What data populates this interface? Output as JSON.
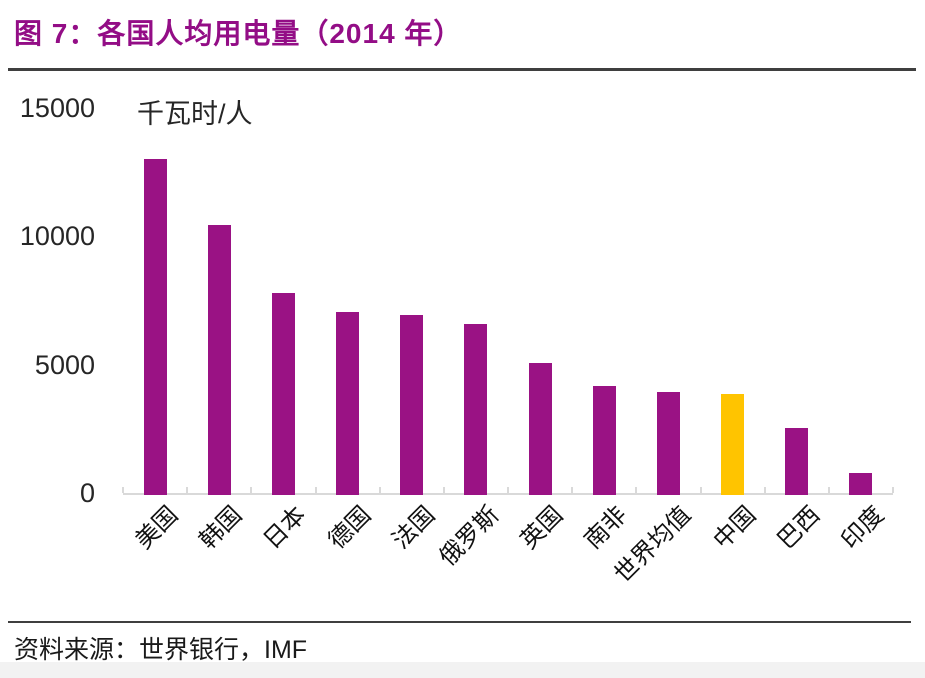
{
  "chart_data": {
    "type": "bar",
    "title": "图 7：各国人均用电量（2014 年）",
    "unit_label": "千瓦时/人",
    "categories": [
      "美国",
      "韩国",
      "日本",
      "德国",
      "法国",
      "俄罗斯",
      "英国",
      "南非",
      "世界均值",
      "中国",
      "巴西",
      "印度"
    ],
    "values": [
      13000,
      10450,
      7800,
      7050,
      6950,
      6600,
      5080,
      4170,
      3950,
      3850,
      2530,
      780
    ],
    "highlight_category": "中国",
    "yticks": [
      0,
      5000,
      10000,
      15000
    ],
    "ylim": [
      0,
      15000
    ],
    "grid": false,
    "legend": null,
    "colors": {
      "bar": "#9A1284",
      "highlight": "#FFC400",
      "axis": "#D9D9D9",
      "title": "#930D86"
    },
    "source": "资料来源：世界银行，IMF"
  }
}
